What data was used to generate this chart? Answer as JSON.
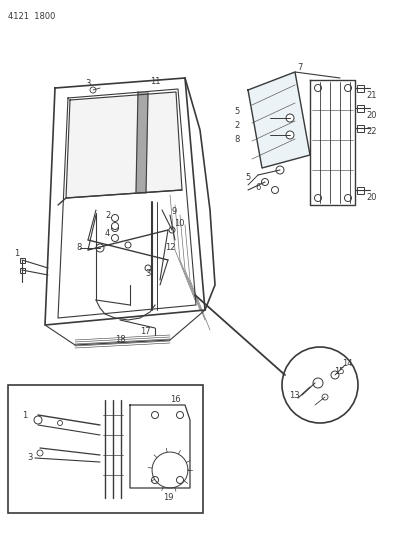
{
  "title_code": "4121  1800",
  "bg_color": "#ffffff",
  "fig_width": 4.08,
  "fig_height": 5.33,
  "dpi": 100,
  "line_color": "#3a3a3a",
  "label_fontsize": 6.0,
  "code_fontsize": 6.0
}
